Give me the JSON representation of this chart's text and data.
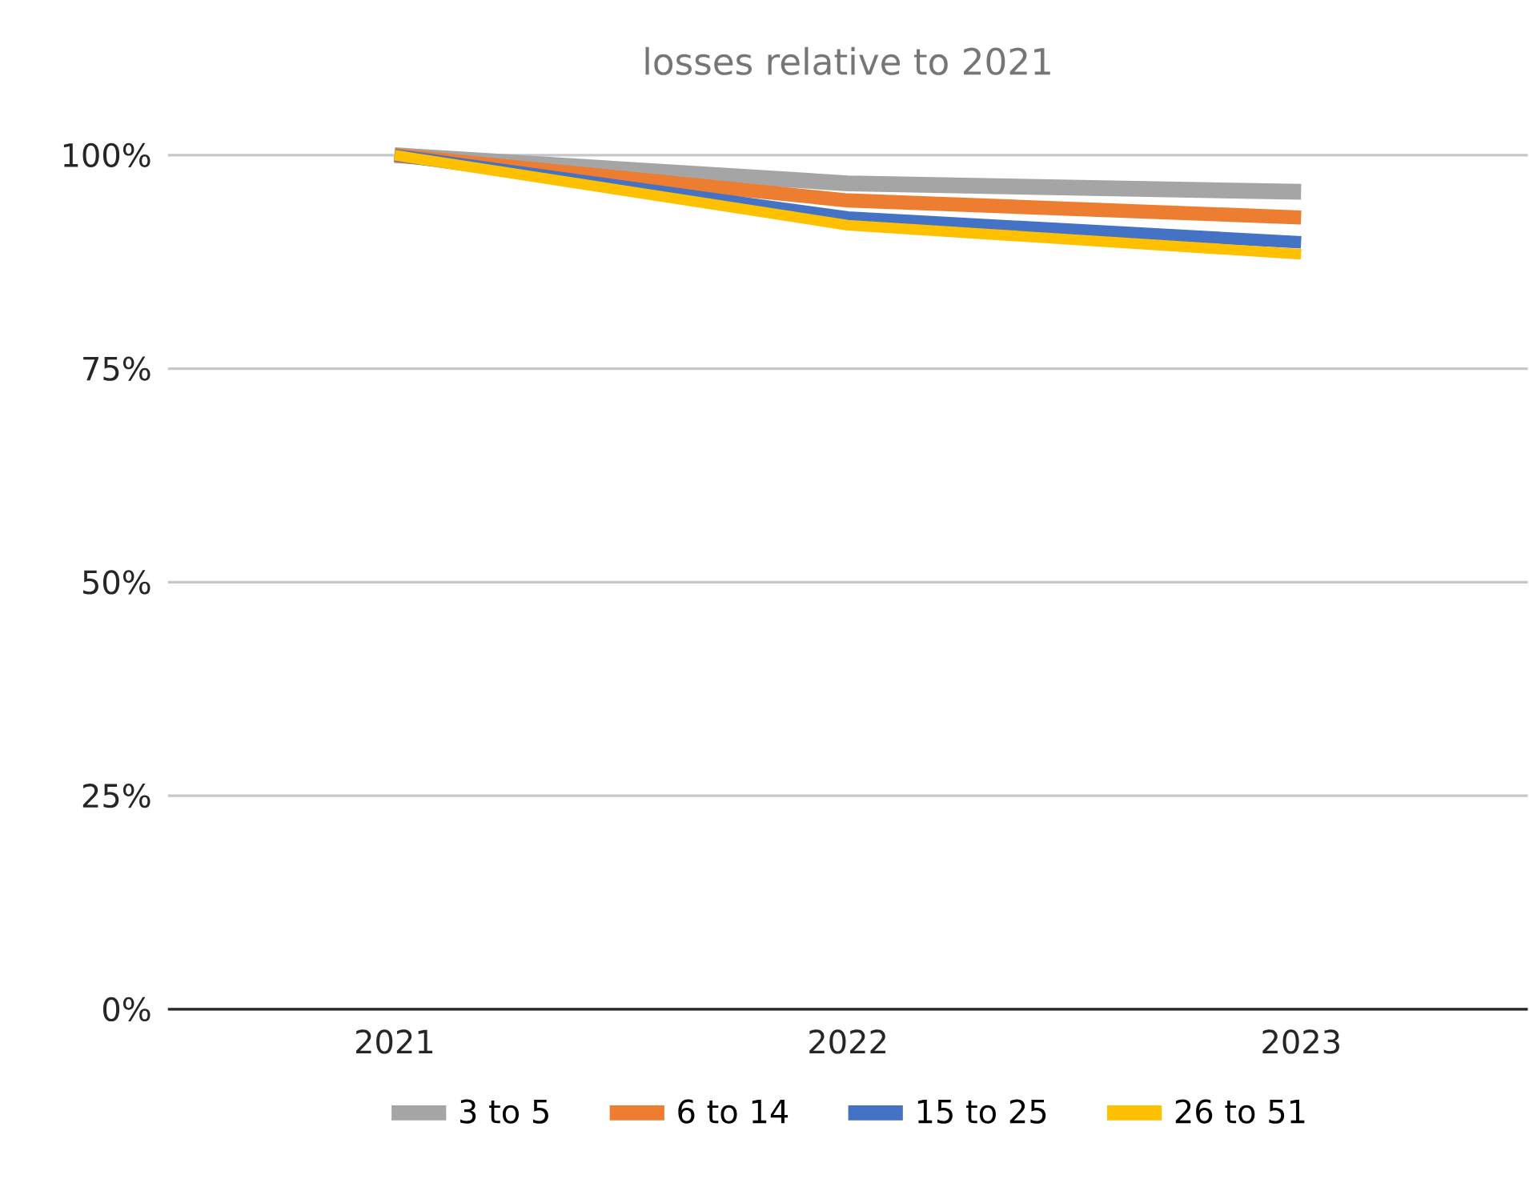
{
  "chart_data": {
    "type": "line",
    "title": "losses relative to 2021",
    "categories": [
      "2021",
      "2022",
      "2023"
    ],
    "series": [
      {
        "name": "3 to 5",
        "color": "#a5a5a5",
        "values": [
          100,
          96.7,
          95.7
        ]
      },
      {
        "name": "6 to 14",
        "color": "#ed7d31",
        "values": [
          100,
          94.7,
          92.7
        ]
      },
      {
        "name": "15 to 25",
        "color": "#4472c4",
        "values": [
          100,
          92.7,
          89.8
        ]
      },
      {
        "name": "26 to 51",
        "color": "#ffc000",
        "values": [
          100,
          91.8,
          88.4
        ]
      }
    ],
    "ylim": [
      0,
      100
    ],
    "yticks": [
      {
        "value": 0,
        "label": "0%"
      },
      {
        "value": 25,
        "label": "25%"
      },
      {
        "value": 50,
        "label": "50%"
      },
      {
        "value": 75,
        "label": "75%"
      },
      {
        "value": 100,
        "label": "100%"
      }
    ],
    "grid": "y",
    "legend": "bottom",
    "marker": "none",
    "line_style": "solid"
  }
}
